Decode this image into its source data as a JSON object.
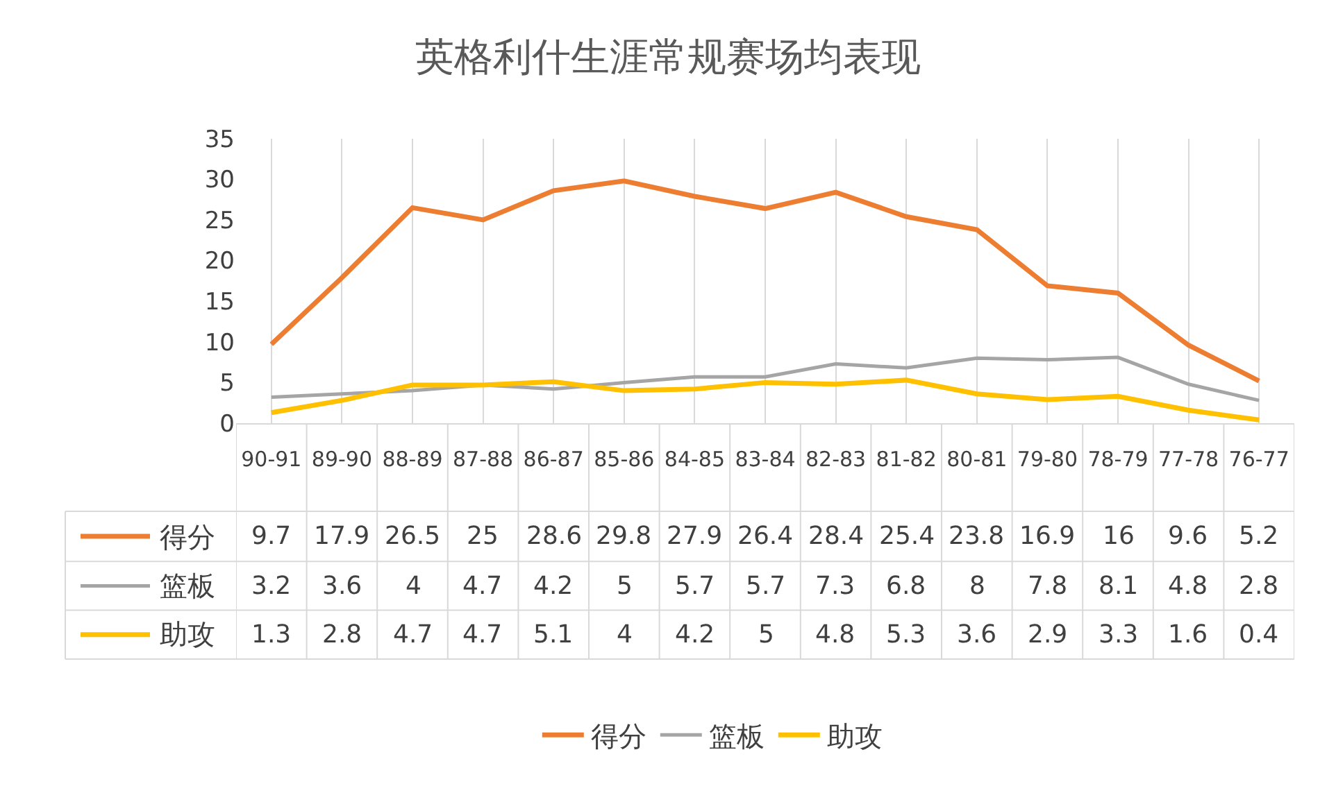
{
  "chart_data": {
    "type": "line",
    "title": "英格利什生涯常规赛场均表现",
    "categories": [
      "90-91",
      "89-90",
      "88-89",
      "87-88",
      "86-87",
      "85-86",
      "84-85",
      "83-84",
      "82-83",
      "81-82",
      "80-81",
      "79-80",
      "78-79",
      "77-78",
      "76-77"
    ],
    "series": [
      {
        "name": "得分",
        "color": "#ed7d31",
        "values": [
          9.7,
          17.9,
          26.5,
          25,
          28.6,
          29.8,
          27.9,
          26.4,
          28.4,
          25.4,
          23.8,
          16.9,
          16,
          9.6,
          5.2
        ]
      },
      {
        "name": "篮板",
        "color": "#a5a5a5",
        "values": [
          3.2,
          3.6,
          4,
          4.7,
          4.2,
          5,
          5.7,
          5.7,
          7.3,
          6.8,
          8,
          7.8,
          8.1,
          4.8,
          2.8
        ]
      },
      {
        "name": "助攻",
        "color": "#ffc000",
        "values": [
          1.3,
          2.8,
          4.7,
          4.7,
          5.1,
          4,
          4.2,
          5,
          4.8,
          5.3,
          3.6,
          2.9,
          3.3,
          1.6,
          0.4
        ]
      }
    ],
    "ylim": [
      0,
      35
    ],
    "yticks": [
      0,
      5,
      10,
      15,
      20,
      25,
      30,
      35
    ],
    "grid": "x",
    "legend": "bottom",
    "data_labels": true,
    "marker": "none",
    "line_style": "solid"
  }
}
